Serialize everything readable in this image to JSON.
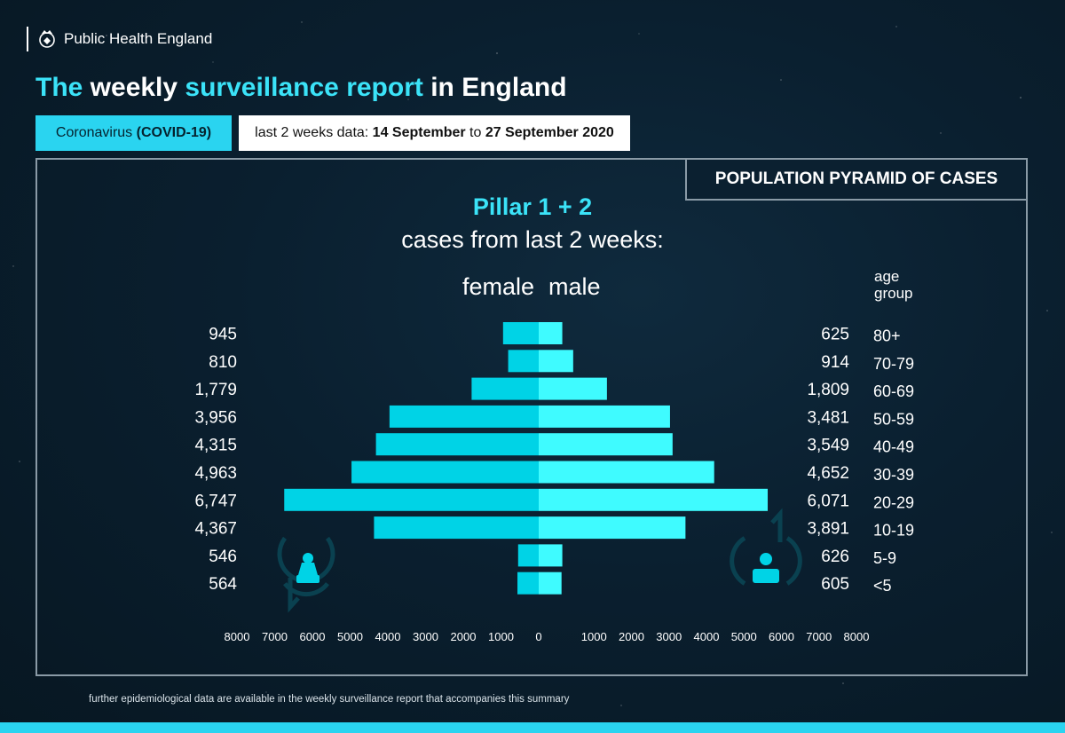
{
  "brand": {
    "name": "Public Health England",
    "crest_icon": "royal-crest-icon"
  },
  "title": {
    "part1": "The ",
    "part2": "weekly ",
    "part3": "surveillance report",
    "part4": " in England"
  },
  "topic_pill": {
    "prefix": "Coronavirus ",
    "bold": "(COVID-19)"
  },
  "date_pill": {
    "prefix": "last 2 weeks data: ",
    "start": "14 September",
    "middle": " to ",
    "end": "27 September 2020"
  },
  "panel_title": "POPULATION PYRAMID OF CASES",
  "footnote": "further epidemiological data are available in the weekly surveillance report that accompanies this summary",
  "colors": {
    "accent": "#2ad4f0",
    "bar_female": "#00d3e6",
    "bar_male": "#3ffbff",
    "background": "#0a1f2f",
    "icon_dark": "#0a4150"
  },
  "icons": {
    "female": "female-person-icon",
    "male": "male-person-icon"
  },
  "chart_data": {
    "type": "bar",
    "orientation": "horizontal-pyramid",
    "title": "Pillar 1 + 2",
    "subtitle": "cases from last 2 weeks:",
    "left_label": "female",
    "right_label": "male",
    "category_axis_label": "age group",
    "categories": [
      "80+",
      "70-79",
      "60-69",
      "50-59",
      "40-49",
      "30-39",
      "20-29",
      "10-19",
      "5-9",
      "<5"
    ],
    "series": [
      {
        "name": "female",
        "values": [
          945,
          810,
          1779,
          3956,
          4315,
          4963,
          6747,
          4367,
          546,
          564
        ]
      },
      {
        "name": "male",
        "values": [
          625,
          914,
          1809,
          3481,
          3549,
          4652,
          6071,
          3891,
          626,
          605
        ]
      }
    ],
    "value_labels_female": [
      "945",
      "810",
      "1,779",
      "3,956",
      "4,315",
      "4,963",
      "6,747",
      "4,367",
      "546",
      "564"
    ],
    "value_labels_male": [
      "625",
      "914",
      "1,809",
      "3,481",
      "3,549",
      "4,652",
      "6,071",
      "3,891",
      "626",
      "605"
    ],
    "xlim": [
      0,
      8000
    ],
    "ticks_female": [
      "8000",
      "7000",
      "6000",
      "5000",
      "4000",
      "3000",
      "2000",
      "1000",
      "0"
    ],
    "ticks_male": [
      "1000",
      "2000",
      "3000",
      "4000",
      "5000",
      "6000",
      "7000",
      "8000"
    ],
    "tick_values": [
      0,
      1000,
      2000,
      3000,
      4000,
      5000,
      6000,
      7000,
      8000
    ],
    "grid": false,
    "legend": "none"
  }
}
